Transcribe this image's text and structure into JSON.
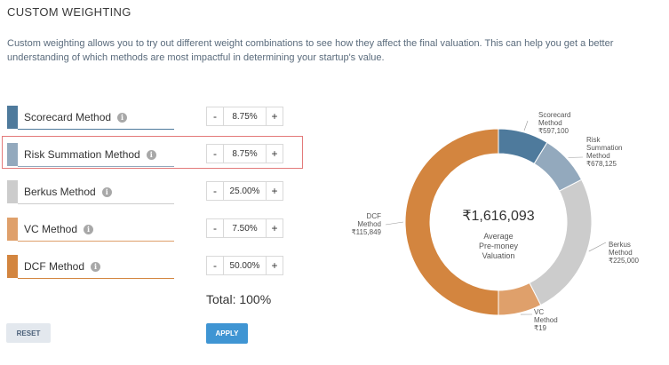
{
  "header": {
    "title": "CUSTOM WEIGHTING"
  },
  "description": "Custom weighting allows you to try out different weight combinations to see how they affect the final valuation. This can help you get a better understanding of which methods are most impactful in determining your startup's value.",
  "methods": [
    {
      "label": "Scorecard Method",
      "weight": "8.75%",
      "color": "#4e7a9c"
    },
    {
      "label": "Risk Summation Method",
      "weight": "8.75%",
      "color": "#93a9bd"
    },
    {
      "label": "Berkus Method",
      "weight": "25.00%",
      "color": "#cccccc"
    },
    {
      "label": "VC Method",
      "weight": "7.50%",
      "color": "#dfa06b"
    },
    {
      "label": "DCF Method",
      "weight": "50.00%",
      "color": "#d3853f"
    }
  ],
  "controls": {
    "minus": "-",
    "plus": "+"
  },
  "total": "Total: 100%",
  "buttons": {
    "reset": "RESET",
    "apply": "APPLY"
  },
  "chart_data": {
    "type": "pie",
    "style": "donut",
    "center_value": "₹1,616,093",
    "center_label": [
      "Average",
      "Pre-money",
      "Valuation"
    ],
    "categories": [
      "Scorecard Method",
      "Risk Summation Method",
      "Berkus Method",
      "VC Method",
      "DCF Method"
    ],
    "values": [
      8.75,
      8.75,
      25.0,
      7.5,
      50.0
    ],
    "colors": [
      "#4e7a9c",
      "#93a9bd",
      "#cccccc",
      "#dfa06b",
      "#d3853f"
    ],
    "slice_labels": [
      {
        "lines": [
          "Scorecard",
          "Method"
        ],
        "amount": "₹597,100"
      },
      {
        "lines": [
          "Risk",
          "Summation",
          "Method"
        ],
        "amount": "₹678,125"
      },
      {
        "lines": [
          "Berkus",
          "Method"
        ],
        "amount": "₹225,000"
      },
      {
        "lines": [
          "VC",
          "Method"
        ],
        "amount": "₹19"
      },
      {
        "lines": [
          "DCF",
          "Method"
        ],
        "amount": "₹115,849"
      }
    ]
  }
}
